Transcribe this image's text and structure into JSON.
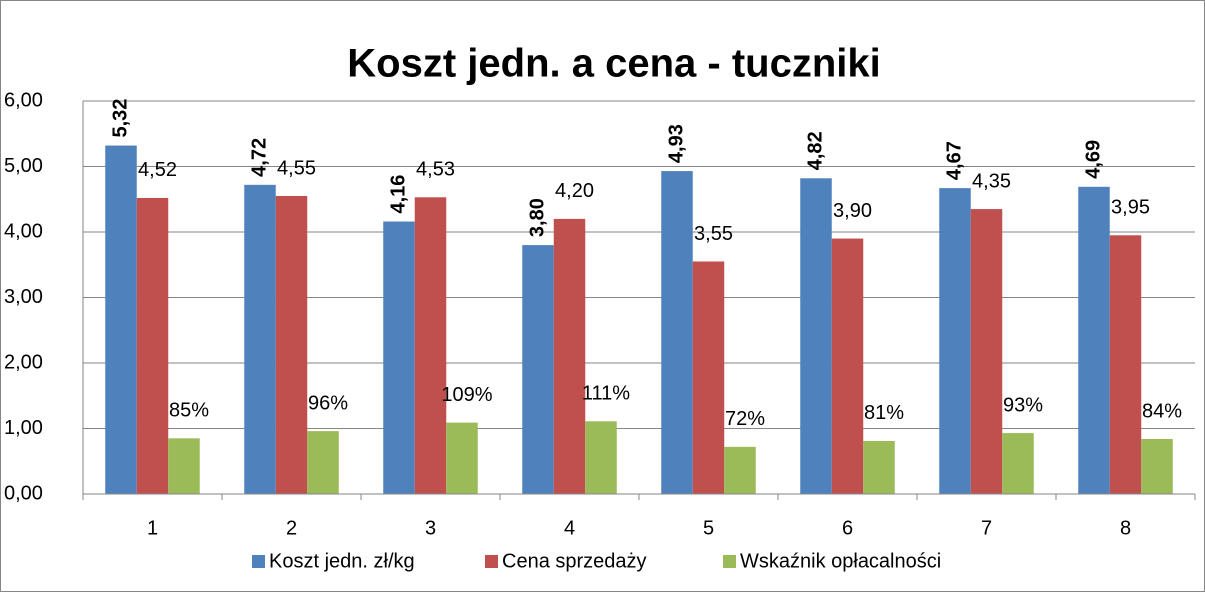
{
  "chart_data": {
    "type": "bar",
    "title": "Koszt jedn. a cena - tuczniki",
    "categories": [
      "1",
      "2",
      "3",
      "4",
      "5",
      "6",
      "7",
      "8"
    ],
    "series": [
      {
        "name": "Koszt jedn. zł/kg",
        "color": "#4f81bd",
        "values": [
          5.32,
          4.72,
          4.16,
          3.8,
          4.93,
          4.82,
          4.67,
          4.69
        ],
        "value_labels": [
          "5,32",
          "4,72",
          "4,16",
          "3,80",
          "4,93",
          "4,82",
          "4,67",
          "4,69"
        ]
      },
      {
        "name": "Cena sprzedaży",
        "color": "#c0504d",
        "values": [
          4.52,
          4.55,
          4.53,
          4.2,
          3.55,
          3.9,
          4.35,
          3.95
        ],
        "value_labels": [
          "4,52",
          "4,55",
          "4,53",
          "4,20",
          "3,55",
          "3,90",
          "4,35",
          "3,95"
        ]
      },
      {
        "name": "Wskaźnik opłacalności",
        "color": "#9bbb59",
        "values": [
          0.85,
          0.96,
          1.09,
          1.11,
          0.72,
          0.81,
          0.93,
          0.84
        ],
        "value_labels": [
          "85%",
          "96%",
          "109%",
          "111%",
          "72%",
          "81%",
          "93%",
          "84%"
        ]
      }
    ],
    "ylim": [
      0,
      6
    ],
    "yticks": [
      {
        "value": 0,
        "label": "0,00"
      },
      {
        "value": 1,
        "label": "1,00"
      },
      {
        "value": 2,
        "label": "2,00"
      },
      {
        "value": 3,
        "label": "3,00"
      },
      {
        "value": 4,
        "label": "4,00"
      },
      {
        "value": 5,
        "label": "5,00"
      },
      {
        "value": 6,
        "label": "6,00"
      }
    ],
    "grid": true,
    "legend": "bottom"
  }
}
